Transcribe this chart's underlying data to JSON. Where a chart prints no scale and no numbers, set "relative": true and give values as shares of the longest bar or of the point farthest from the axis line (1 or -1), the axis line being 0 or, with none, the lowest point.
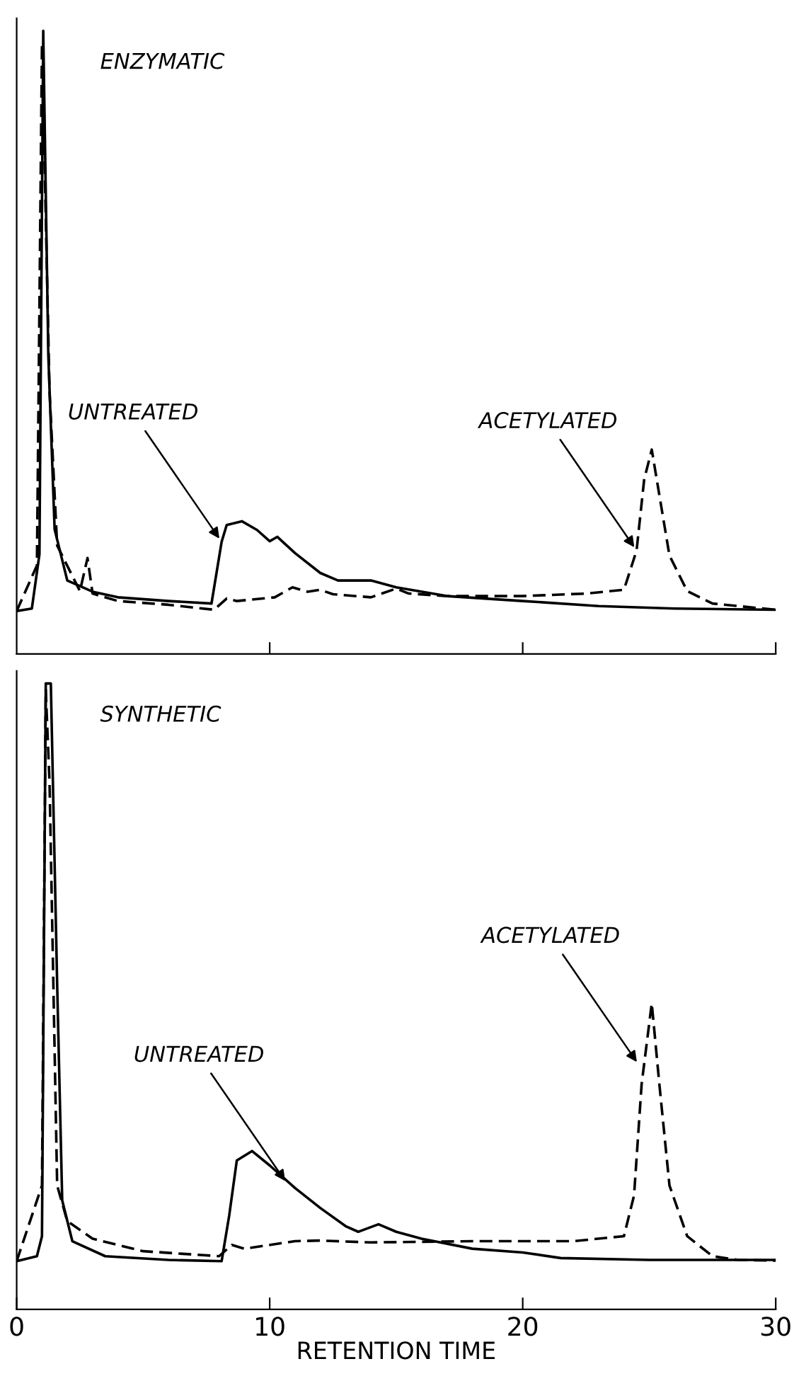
{
  "chart_data": [
    {
      "type": "line",
      "title": "ENZYMATIC",
      "relative": true,
      "xlim": [
        0,
        30
      ],
      "xticks": [
        {
          "value": 10,
          "label": null
        },
        {
          "value": 20,
          "label": null
        },
        {
          "value": 30,
          "label": null
        }
      ],
      "tick_labels": false,
      "grid": false,
      "legend": false,
      "series": [
        {
          "color": "#000000",
          "line_style": "solid",
          "x": [
            0,
            0.6,
            0.9,
            1.05,
            1.25,
            1.5,
            2.0,
            3,
            4,
            6,
            7.7,
            8.1,
            8.3,
            8.9,
            9.5,
            10,
            10.3,
            11,
            12,
            12.7,
            14,
            15,
            17,
            20,
            23,
            26,
            30
          ],
          "values": [
            0.069,
            0.073,
            0.16,
            1.0,
            0.48,
            0.2,
            0.118,
            0.1,
            0.091,
            0.085,
            0.081,
            0.18,
            0.207,
            0.213,
            0.199,
            0.181,
            0.188,
            0.162,
            0.13,
            0.118,
            0.118,
            0.107,
            0.093,
            0.085,
            0.077,
            0.073,
            0.071
          ]
        },
        {
          "color": "#000000",
          "line_style": "dashed",
          "x": [
            0,
            0.8,
            1.0,
            1.3,
            1.6,
            2.5,
            2.8,
            3.0,
            4,
            6,
            7.8,
            8.3,
            8.7,
            10.2,
            10.9,
            11.5,
            12,
            12.5,
            14,
            15,
            15.5,
            17,
            20,
            22.5,
            24,
            24.5,
            24.8,
            25.1,
            25.4,
            25.8,
            26.5,
            27.5,
            30
          ],
          "values": [
            0.069,
            0.142,
            0.98,
            0.42,
            0.174,
            0.101,
            0.154,
            0.097,
            0.085,
            0.079,
            0.071,
            0.089,
            0.085,
            0.091,
            0.107,
            0.1,
            0.103,
            0.096,
            0.091,
            0.105,
            0.097,
            0.093,
            0.093,
            0.097,
            0.103,
            0.166,
            0.28,
            0.328,
            0.255,
            0.158,
            0.101,
            0.081,
            0.071
          ]
        }
      ],
      "annotations": [
        {
          "text": "UNTREATED",
          "x": 8.1,
          "y": 0.18
        },
        {
          "text": "ACETYLATED",
          "x": 24.5,
          "y": 0.166
        }
      ]
    },
    {
      "type": "line",
      "title": "SYNTHETIC",
      "relative": true,
      "xlabel": "RETENTION TIME",
      "xlim": [
        0,
        30
      ],
      "xticks": [
        0,
        10,
        20,
        30
      ],
      "tick_labels": "x",
      "grid": false,
      "legend": false,
      "series": [
        {
          "color": "#000000",
          "line_style": "solid",
          "x": [
            0,
            0.8,
            1.0,
            1.15,
            1.35,
            1.6,
            1.8,
            2.2,
            3.5,
            6,
            8.1,
            8.4,
            8.7,
            9.3,
            10,
            11,
            12,
            13,
            13.5,
            14.3,
            15,
            16,
            18,
            20,
            21.5,
            25,
            30
          ],
          "values": [
            0.077,
            0.085,
            0.117,
            1.0,
            1.0,
            0.52,
            0.174,
            0.109,
            0.085,
            0.079,
            0.077,
            0.15,
            0.238,
            0.253,
            0.23,
            0.194,
            0.162,
            0.133,
            0.124,
            0.136,
            0.124,
            0.113,
            0.097,
            0.091,
            0.082,
            0.079,
            0.079
          ]
        },
        {
          "color": "#000000",
          "line_style": "dashed",
          "x": [
            0,
            1.0,
            1.15,
            1.3,
            1.6,
            2,
            3,
            5,
            8,
            8.5,
            9,
            11,
            12,
            14,
            18,
            22,
            24,
            24.4,
            24.7,
            25.1,
            25.4,
            25.8,
            26.5,
            27.5,
            28.5,
            30
          ],
          "values": [
            0.077,
            0.198,
            0.99,
            0.84,
            0.198,
            0.141,
            0.113,
            0.093,
            0.085,
            0.103,
            0.097,
            0.109,
            0.11,
            0.107,
            0.109,
            0.109,
            0.117,
            0.182,
            0.36,
            0.489,
            0.36,
            0.198,
            0.117,
            0.085,
            0.079,
            0.078
          ]
        }
      ],
      "annotations": [
        {
          "text": "UNTREATED",
          "x": 10.7,
          "y": 0.2
        },
        {
          "text": "ACETYLATED",
          "x": 24.6,
          "y": 0.39
        }
      ]
    }
  ]
}
